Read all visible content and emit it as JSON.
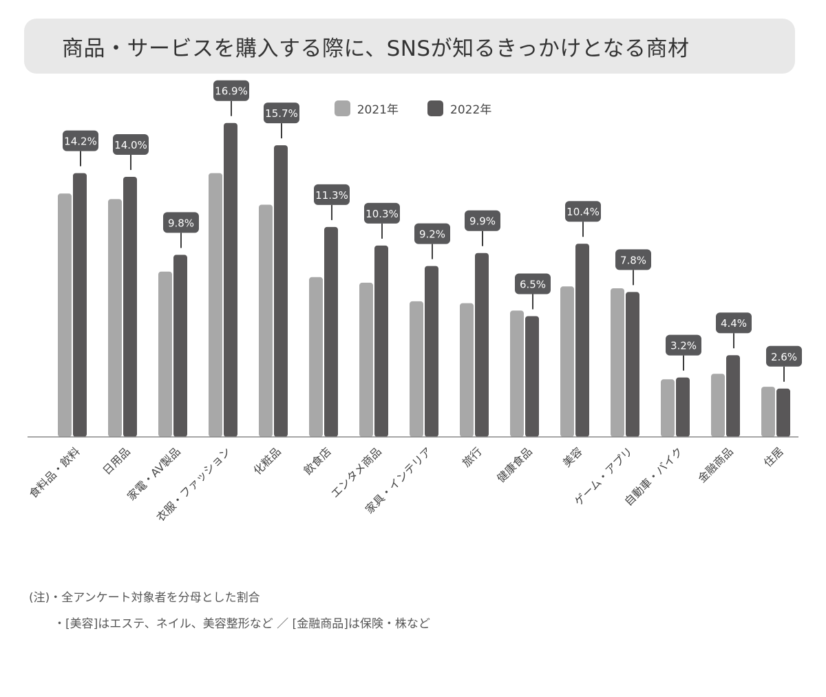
{
  "title": "商品・サービスを購入する際に、SNSが知るきっかけとなる商材",
  "colors": {
    "series_2021": "#a8a8a8",
    "series_2022": "#595758",
    "label_bg": "#58585a",
    "axis": "#888888"
  },
  "legend": [
    {
      "label": "2021年"
    },
    {
      "label": "2022年"
    }
  ],
  "notes": [
    "(注)・全アンケート対象者を分母とした割合",
    "・[美容]はエステ、ネイル、美容整形など ／ [金融商品]は保険・株など"
  ],
  "chart_data": {
    "type": "bar",
    "categories": [
      "食料品・飲料",
      "日用品",
      "家電・AV製品",
      "衣服・ファッション",
      "化粧品",
      "飲食店",
      "エンタメ商品",
      "家具・インテリア",
      "旅行",
      "健康食品",
      "美容",
      "ゲーム・アプリ",
      "自動車・バイク",
      "金融商品",
      "住居"
    ],
    "series": [
      {
        "name": "2021年",
        "values": [
          13.1,
          12.8,
          8.9,
          14.2,
          12.5,
          8.6,
          8.3,
          7.3,
          7.2,
          6.8,
          8.1,
          8.0,
          3.1,
          3.4,
          2.7
        ]
      },
      {
        "name": "2022年",
        "values": [
          14.2,
          14.0,
          9.8,
          16.9,
          15.7,
          11.3,
          10.3,
          9.2,
          9.9,
          6.5,
          10.4,
          7.8,
          3.2,
          4.4,
          2.6
        ]
      }
    ],
    "data_labels": [
      "14.2%",
      "14.0%",
      "9.8%",
      "16.9%",
      "15.7%",
      "11.3%",
      "10.3%",
      "9.2%",
      "9.9%",
      "6.5%",
      "10.4%",
      "7.8%",
      "3.2%",
      "4.4%",
      "2.6%"
    ],
    "ylim": [
      0,
      20
    ],
    "grid": false,
    "legend_position": "top-center"
  }
}
